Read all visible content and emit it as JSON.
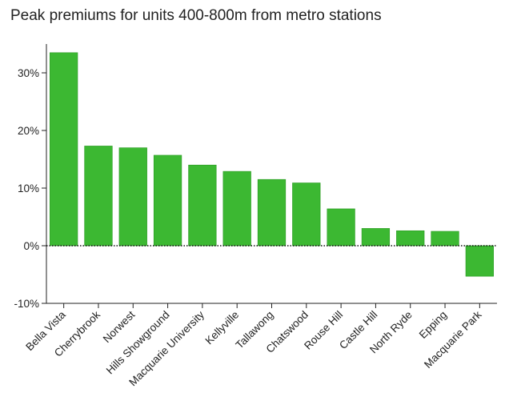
{
  "chart_data": {
    "type": "bar",
    "title": "Peak premiums for units 400-800m from metro stations",
    "xlabel": "",
    "ylabel": "",
    "categories": [
      "Bella Vista",
      "Cherrybrook",
      "Norwest",
      "Hills Showground",
      "Macquarie University",
      "Kellyville",
      "Tallawong",
      "Chatswood",
      "Rouse Hill",
      "Castle Hill",
      "North Ryde",
      "Epping",
      "Macquarie Park"
    ],
    "values": [
      33.5,
      17.3,
      17.0,
      15.7,
      14.0,
      12.9,
      11.5,
      10.9,
      6.4,
      3.0,
      2.6,
      2.5,
      -5.3
    ],
    "ylim": [
      -10,
      35
    ],
    "yticks": [
      -10,
      0,
      10,
      20,
      30
    ],
    "ytick_labels": [
      "-10%",
      "0%",
      "10%",
      "20%",
      "30%"
    ],
    "bar_color": "#3cb832",
    "bar_edge_color": "#2a9a22",
    "grid": false,
    "zero_line": "dotted"
  }
}
